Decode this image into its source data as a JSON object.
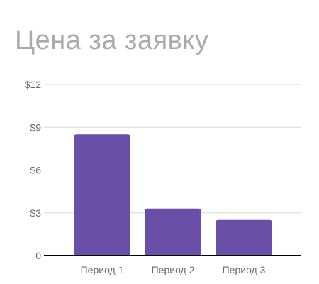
{
  "chart_data": {
    "type": "bar",
    "title": "Цена за заявку",
    "categories": [
      "Период 1",
      "Период 2",
      "Период 3"
    ],
    "values": [
      8.5,
      3.3,
      2.5
    ],
    "ylim": [
      0,
      12
    ],
    "yticks": [
      0,
      3,
      6,
      9,
      12
    ],
    "ytick_labels": [
      "0",
      "$3",
      "$6",
      "$9",
      "$12"
    ],
    "grid": true,
    "xlabel": "",
    "ylabel": "",
    "bar_color": "#6a4fa9",
    "grid_color": "#d7d7d7",
    "axis_color": "#000000"
  }
}
